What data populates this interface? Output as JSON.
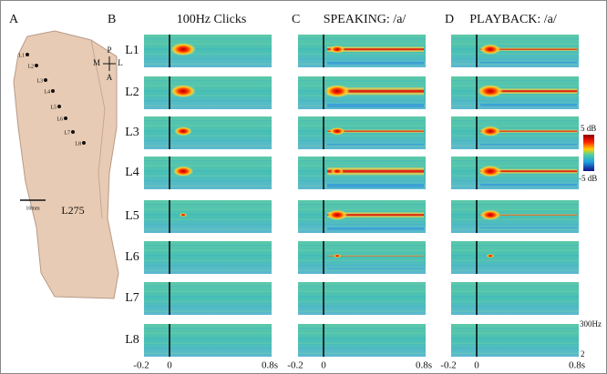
{
  "panels": {
    "A": {
      "label": "A",
      "electrodes": [
        "L1",
        "L2",
        "L3",
        "L4",
        "L5",
        "L6",
        "L7",
        "L8"
      ],
      "orientation": {
        "p": "P",
        "m": "M",
        "l": "L",
        "a": "A"
      },
      "scale": "10mm",
      "subject": "L275"
    },
    "B": {
      "label": "B",
      "title": "100Hz Clicks"
    },
    "C": {
      "label": "C",
      "title": "SPEAKING: /a/"
    },
    "D": {
      "label": "D",
      "title": "PLAYBACK: /a/"
    }
  },
  "rows": [
    "L1",
    "L2",
    "L3",
    "L4",
    "L5",
    "L6",
    "L7",
    "L8"
  ],
  "time_axis": {
    "start": "-0.2",
    "zero": "0",
    "end": "0.8s"
  },
  "colorbar": {
    "max": "5 dB",
    "min": "-5 dB"
  },
  "freq_axis": {
    "top": "300Hz",
    "bottom": "2"
  }
}
